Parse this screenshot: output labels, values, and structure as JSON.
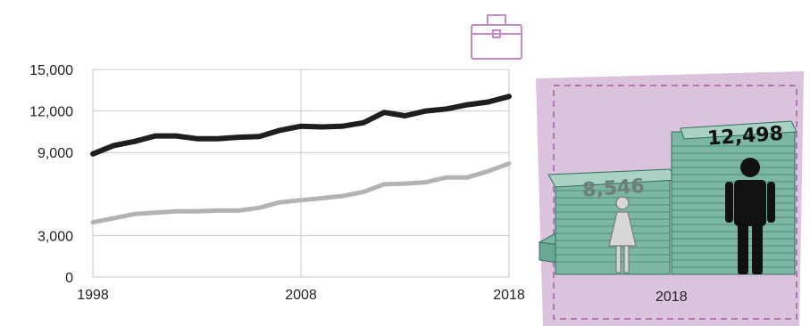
{
  "chart_data": {
    "type": "line",
    "x": [
      1998,
      1999,
      2000,
      2001,
      2002,
      2003,
      2004,
      2005,
      2006,
      2007,
      2008,
      2009,
      2010,
      2011,
      2012,
      2013,
      2014,
      2015,
      2016,
      2017,
      2018
    ],
    "series": [
      {
        "values": [
          8900,
          9500,
          9800,
          10200,
          10200,
          10000,
          10000,
          10100,
          10150,
          10600,
          10900,
          10850,
          10900,
          11150,
          11900,
          11650,
          12000,
          12150,
          12450,
          12650,
          13050
        ]
      },
      {
        "values": [
          3950,
          4250,
          4550,
          4650,
          4750,
          4750,
          4800,
          4800,
          5000,
          5400,
          5550,
          5700,
          5850,
          6150,
          6700,
          6750,
          6850,
          7200,
          7200,
          7650,
          8200
        ]
      }
    ],
    "y_ticks": [
      "15,000",
      "12,000",
      "9,000",
      "3,000",
      "0"
    ],
    "x_ticks": [
      "1998",
      "2008",
      "2018"
    ],
    "ylim": [
      0,
      15000
    ],
    "grid": true,
    "colors": {
      "men": "#1e1e1e",
      "women": "#b3b3b3",
      "accent": "#b477b4",
      "box_fill": "#dcc3dd",
      "cash": "#7bb7a3"
    }
  },
  "comparison": {
    "women_value": "8,546",
    "men_value": "12,498",
    "year": "2018",
    "icons": [
      "briefcase-icon",
      "woman-icon",
      "man-icon"
    ]
  }
}
